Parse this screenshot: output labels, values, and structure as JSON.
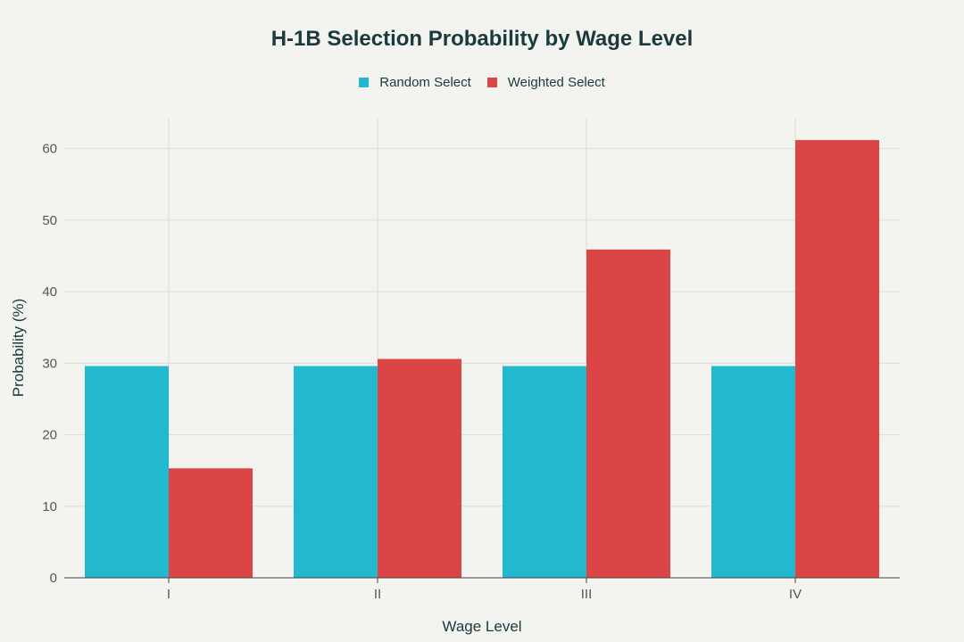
{
  "chart_data": {
    "type": "bar",
    "title": "H-1B Selection Probability by Wage Level",
    "xlabel": "Wage Level",
    "ylabel": "Probability (%)",
    "categories": [
      "I",
      "II",
      "III",
      "IV"
    ],
    "series": [
      {
        "name": "Random Select",
        "color": "#22b8cf",
        "values": [
          29.6,
          29.6,
          29.6,
          29.6
        ]
      },
      {
        "name": "Weighted Select",
        "color": "#db4545",
        "values": [
          15.3,
          30.6,
          45.9,
          61.2
        ]
      }
    ],
    "yticks": [
      0,
      10,
      20,
      30,
      40,
      50,
      60
    ],
    "ylim": [
      0,
      64.2
    ],
    "grid": true,
    "legend": "top-center"
  }
}
